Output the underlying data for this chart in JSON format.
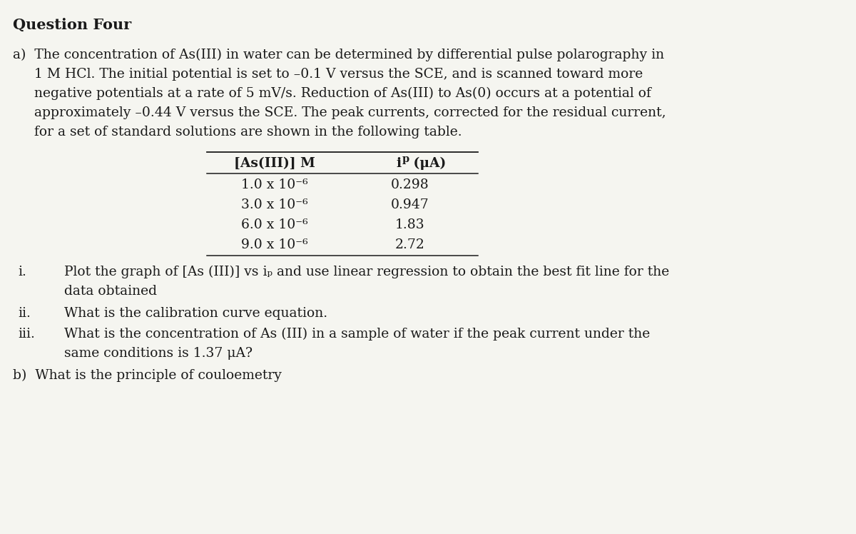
{
  "title": "Question Four",
  "background_color": "#f5f5f0",
  "text_color": "#1a1a1a",
  "title_fontsize": 15,
  "body_fontsize": 13.5,
  "table_rows": [
    [
      "1.0 x 10⁻⁶",
      "0.298"
    ],
    [
      "3.0 x 10⁻⁶",
      "0.947"
    ],
    [
      "6.0 x 10⁻⁶",
      "1.83"
    ],
    [
      "9.0 x 10⁻⁶",
      "2.72"
    ]
  ]
}
